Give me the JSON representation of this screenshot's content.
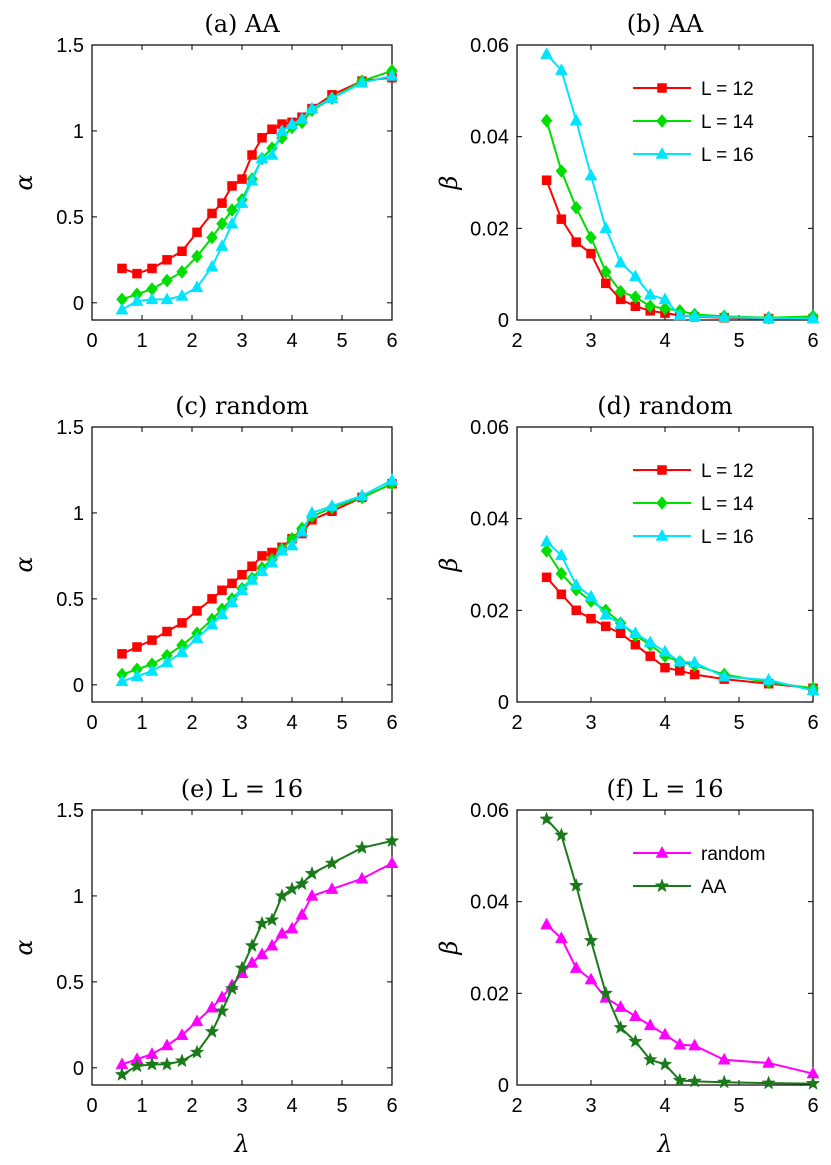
{
  "chart_data": [
    {
      "id": "a",
      "type": "line",
      "title": "(a) AA",
      "xlabel": "",
      "ylabel": "α",
      "xlim": [
        0,
        6
      ],
      "ylim": [
        -0.1,
        1.5
      ],
      "xticks": [
        "0",
        "1",
        "2",
        "3",
        "4",
        "5",
        "6"
      ],
      "yticks": [
        "0",
        "0.5",
        "1",
        "1.5"
      ],
      "legend": null,
      "series": [
        {
          "name": "L = 12",
          "color": "#ff0000",
          "marker": "square",
          "x": [
            0.6,
            0.9,
            1.2,
            1.5,
            1.8,
            2.1,
            2.4,
            2.6,
            2.8,
            3.0,
            3.2,
            3.4,
            3.6,
            3.8,
            4.0,
            4.2,
            4.4,
            4.8,
            5.4,
            6.0
          ],
          "y": [
            0.2,
            0.17,
            0.2,
            0.25,
            0.3,
            0.41,
            0.52,
            0.58,
            0.68,
            0.72,
            0.86,
            0.96,
            1.01,
            1.04,
            1.05,
            1.08,
            1.13,
            1.21,
            1.29,
            1.31
          ]
        },
        {
          "name": "L = 14",
          "color": "#00dd00",
          "marker": "diamond",
          "x": [
            0.6,
            0.9,
            1.2,
            1.5,
            1.8,
            2.1,
            2.4,
            2.6,
            2.8,
            3.0,
            3.2,
            3.4,
            3.6,
            3.8,
            4.0,
            4.2,
            4.4,
            4.8,
            5.4,
            6.0
          ],
          "y": [
            0.02,
            0.05,
            0.08,
            0.13,
            0.18,
            0.27,
            0.38,
            0.46,
            0.54,
            0.6,
            0.72,
            0.84,
            0.9,
            0.96,
            1.02,
            1.05,
            1.12,
            1.19,
            1.29,
            1.35
          ]
        },
        {
          "name": "L = 16",
          "color": "#00e5ff",
          "marker": "triangle",
          "x": [
            0.6,
            0.9,
            1.2,
            1.5,
            1.8,
            2.1,
            2.4,
            2.6,
            2.8,
            3.0,
            3.2,
            3.4,
            3.6,
            3.8,
            4.0,
            4.2,
            4.4,
            4.8,
            5.4,
            6.0
          ],
          "y": [
            -0.04,
            0.01,
            0.02,
            0.02,
            0.04,
            0.09,
            0.21,
            0.33,
            0.46,
            0.58,
            0.71,
            0.84,
            0.86,
            1.0,
            1.04,
            1.07,
            1.13,
            1.19,
            1.28,
            1.32
          ]
        }
      ]
    },
    {
      "id": "b",
      "type": "line",
      "title": "(b) AA",
      "xlabel": "",
      "ylabel": "β",
      "xlim": [
        2,
        6
      ],
      "ylim": [
        0,
        0.06
      ],
      "xticks": [
        "2",
        "3",
        "4",
        "5",
        "6"
      ],
      "yticks": [
        "0",
        "0.02",
        "0.04",
        "0.06"
      ],
      "legend": "top-right",
      "series": [
        {
          "name": "L = 12",
          "color": "#ff0000",
          "marker": "square",
          "x": [
            2.4,
            2.6,
            2.8,
            3.0,
            3.2,
            3.4,
            3.6,
            3.8,
            4.0,
            4.2,
            4.4,
            4.8,
            5.4,
            6.0
          ],
          "y": [
            0.0305,
            0.022,
            0.017,
            0.0145,
            0.008,
            0.0045,
            0.003,
            0.002,
            0.0015,
            0.001,
            0.0007,
            0.0005,
            0.0003,
            0.0003
          ]
        },
        {
          "name": "L = 14",
          "color": "#00dd00",
          "marker": "diamond",
          "x": [
            2.4,
            2.6,
            2.8,
            3.0,
            3.2,
            3.4,
            3.6,
            3.8,
            4.0,
            4.2,
            4.4,
            4.8,
            5.4,
            6.0
          ],
          "y": [
            0.0435,
            0.0325,
            0.0245,
            0.018,
            0.0105,
            0.0062,
            0.005,
            0.003,
            0.0025,
            0.002,
            0.0012,
            0.0008,
            0.0005,
            0.0008
          ]
        },
        {
          "name": "L = 16",
          "color": "#00e5ff",
          "marker": "triangle",
          "x": [
            2.4,
            2.6,
            2.8,
            3.0,
            3.2,
            3.4,
            3.6,
            3.8,
            4.0,
            4.2,
            4.4,
            4.8,
            5.4,
            6.0
          ],
          "y": [
            0.058,
            0.0545,
            0.0435,
            0.0315,
            0.02,
            0.0125,
            0.0095,
            0.0055,
            0.0045,
            0.001,
            0.0008,
            0.0006,
            0.0004,
            0.0003
          ]
        }
      ]
    },
    {
      "id": "c",
      "type": "line",
      "title": "(c) random",
      "xlabel": "",
      "ylabel": "α",
      "xlim": [
        0,
        6
      ],
      "ylim": [
        -0.1,
        1.5
      ],
      "xticks": [
        "0",
        "1",
        "2",
        "3",
        "4",
        "5",
        "6"
      ],
      "yticks": [
        "0",
        "0.5",
        "1",
        "1.5"
      ],
      "legend": null,
      "series": [
        {
          "name": "L = 12",
          "color": "#ff0000",
          "marker": "square",
          "x": [
            0.6,
            0.9,
            1.2,
            1.5,
            1.8,
            2.1,
            2.4,
            2.6,
            2.8,
            3.0,
            3.2,
            3.4,
            3.6,
            3.8,
            4.0,
            4.2,
            4.4,
            4.8,
            5.4,
            6.0
          ],
          "y": [
            0.18,
            0.22,
            0.26,
            0.31,
            0.36,
            0.43,
            0.5,
            0.55,
            0.59,
            0.64,
            0.69,
            0.75,
            0.77,
            0.8,
            0.85,
            0.88,
            0.96,
            1.01,
            1.09,
            1.17
          ]
        },
        {
          "name": "L = 14",
          "color": "#00dd00",
          "marker": "diamond",
          "x": [
            0.6,
            0.9,
            1.2,
            1.5,
            1.8,
            2.1,
            2.4,
            2.6,
            2.8,
            3.0,
            3.2,
            3.4,
            3.6,
            3.8,
            4.0,
            4.2,
            4.4,
            4.8,
            5.4,
            6.0
          ],
          "y": [
            0.06,
            0.09,
            0.12,
            0.17,
            0.23,
            0.3,
            0.38,
            0.44,
            0.5,
            0.56,
            0.62,
            0.68,
            0.73,
            0.79,
            0.85,
            0.91,
            0.98,
            1.03,
            1.09,
            1.17
          ]
        },
        {
          "name": "L = 16",
          "color": "#00e5ff",
          "marker": "triangle",
          "x": [
            0.6,
            0.9,
            1.2,
            1.5,
            1.8,
            2.1,
            2.4,
            2.6,
            2.8,
            3.0,
            3.2,
            3.4,
            3.6,
            3.8,
            4.0,
            4.2,
            4.4,
            4.8,
            5.4,
            6.0
          ],
          "y": [
            0.02,
            0.05,
            0.08,
            0.13,
            0.19,
            0.27,
            0.35,
            0.41,
            0.48,
            0.55,
            0.61,
            0.66,
            0.71,
            0.78,
            0.81,
            0.89,
            1.0,
            1.04,
            1.1,
            1.19
          ]
        }
      ]
    },
    {
      "id": "d",
      "type": "line",
      "title": "(d) random",
      "xlabel": "",
      "ylabel": "β",
      "xlim": [
        2,
        6
      ],
      "ylim": [
        0,
        0.06
      ],
      "xticks": [
        "2",
        "3",
        "4",
        "5",
        "6"
      ],
      "yticks": [
        "0",
        "0.02",
        "0.04",
        "0.06"
      ],
      "legend": "top-right",
      "series": [
        {
          "name": "L = 12",
          "color": "#ff0000",
          "marker": "square",
          "x": [
            2.4,
            2.6,
            2.8,
            3.0,
            3.2,
            3.4,
            3.6,
            3.8,
            4.0,
            4.2,
            4.4,
            4.8,
            5.4,
            6.0
          ],
          "y": [
            0.0272,
            0.0235,
            0.02,
            0.0182,
            0.0165,
            0.015,
            0.0125,
            0.01,
            0.0075,
            0.0068,
            0.006,
            0.005,
            0.004,
            0.003
          ]
        },
        {
          "name": "L = 14",
          "color": "#00dd00",
          "marker": "diamond",
          "x": [
            2.4,
            2.6,
            2.8,
            3.0,
            3.2,
            3.4,
            3.6,
            3.8,
            4.0,
            4.2,
            4.4,
            4.8,
            5.4,
            6.0
          ],
          "y": [
            0.033,
            0.028,
            0.0245,
            0.022,
            0.02,
            0.0172,
            0.0145,
            0.0125,
            0.01,
            0.0088,
            0.008,
            0.006,
            0.0043,
            0.003
          ]
        },
        {
          "name": "L = 16",
          "color": "#00e5ff",
          "marker": "triangle",
          "x": [
            2.4,
            2.6,
            2.8,
            3.0,
            3.2,
            3.4,
            3.6,
            3.8,
            4.0,
            4.2,
            4.4,
            4.8,
            5.4,
            6.0
          ],
          "y": [
            0.035,
            0.032,
            0.0255,
            0.023,
            0.019,
            0.017,
            0.015,
            0.013,
            0.011,
            0.0088,
            0.0086,
            0.0055,
            0.0048,
            0.0025
          ]
        }
      ]
    },
    {
      "id": "e",
      "type": "line",
      "title": "(e) L = 16",
      "xlabel": "λ",
      "ylabel": "α",
      "xlim": [
        0,
        6
      ],
      "ylim": [
        -0.1,
        1.5
      ],
      "xticks": [
        "0",
        "1",
        "2",
        "3",
        "4",
        "5",
        "6"
      ],
      "yticks": [
        "0",
        "0.5",
        "1",
        "1.5"
      ],
      "legend": null,
      "series": [
        {
          "name": "random",
          "color": "#ff00ff",
          "marker": "triangle",
          "x": [
            0.6,
            0.9,
            1.2,
            1.5,
            1.8,
            2.1,
            2.4,
            2.6,
            2.8,
            3.0,
            3.2,
            3.4,
            3.6,
            3.8,
            4.0,
            4.2,
            4.4,
            4.8,
            5.4,
            6.0
          ],
          "y": [
            0.02,
            0.05,
            0.08,
            0.13,
            0.19,
            0.27,
            0.35,
            0.41,
            0.48,
            0.55,
            0.61,
            0.66,
            0.71,
            0.78,
            0.81,
            0.89,
            1.0,
            1.04,
            1.1,
            1.19
          ]
        },
        {
          "name": "AA",
          "color": "#1a7a1a",
          "marker": "star",
          "x": [
            0.6,
            0.9,
            1.2,
            1.5,
            1.8,
            2.1,
            2.4,
            2.6,
            2.8,
            3.0,
            3.2,
            3.4,
            3.6,
            3.8,
            4.0,
            4.2,
            4.4,
            4.8,
            5.4,
            6.0
          ],
          "y": [
            -0.04,
            0.01,
            0.02,
            0.02,
            0.04,
            0.09,
            0.21,
            0.33,
            0.46,
            0.58,
            0.71,
            0.84,
            0.86,
            1.0,
            1.04,
            1.07,
            1.13,
            1.19,
            1.28,
            1.32
          ]
        }
      ]
    },
    {
      "id": "f",
      "type": "line",
      "title": "(f) L = 16",
      "xlabel": "λ",
      "ylabel": "β",
      "xlim": [
        2,
        6
      ],
      "ylim": [
        0,
        0.06
      ],
      "xticks": [
        "2",
        "3",
        "4",
        "5",
        "6"
      ],
      "yticks": [
        "0",
        "0.02",
        "0.04",
        "0.06"
      ],
      "legend": "top-right",
      "series": [
        {
          "name": "random",
          "color": "#ff00ff",
          "marker": "triangle",
          "x": [
            2.4,
            2.6,
            2.8,
            3.0,
            3.2,
            3.4,
            3.6,
            3.8,
            4.0,
            4.2,
            4.4,
            4.8,
            5.4,
            6.0
          ],
          "y": [
            0.035,
            0.032,
            0.0255,
            0.023,
            0.019,
            0.017,
            0.015,
            0.013,
            0.011,
            0.0088,
            0.0086,
            0.0055,
            0.0048,
            0.0025
          ]
        },
        {
          "name": "AA",
          "color": "#1a7a1a",
          "marker": "star",
          "x": [
            2.4,
            2.6,
            2.8,
            3.0,
            3.2,
            3.4,
            3.6,
            3.8,
            4.0,
            4.2,
            4.4,
            4.8,
            5.4,
            6.0
          ],
          "y": [
            0.058,
            0.0545,
            0.0435,
            0.0315,
            0.02,
            0.0125,
            0.0095,
            0.0055,
            0.0045,
            0.001,
            0.0008,
            0.0006,
            0.0004,
            0.0003
          ]
        }
      ]
    }
  ]
}
